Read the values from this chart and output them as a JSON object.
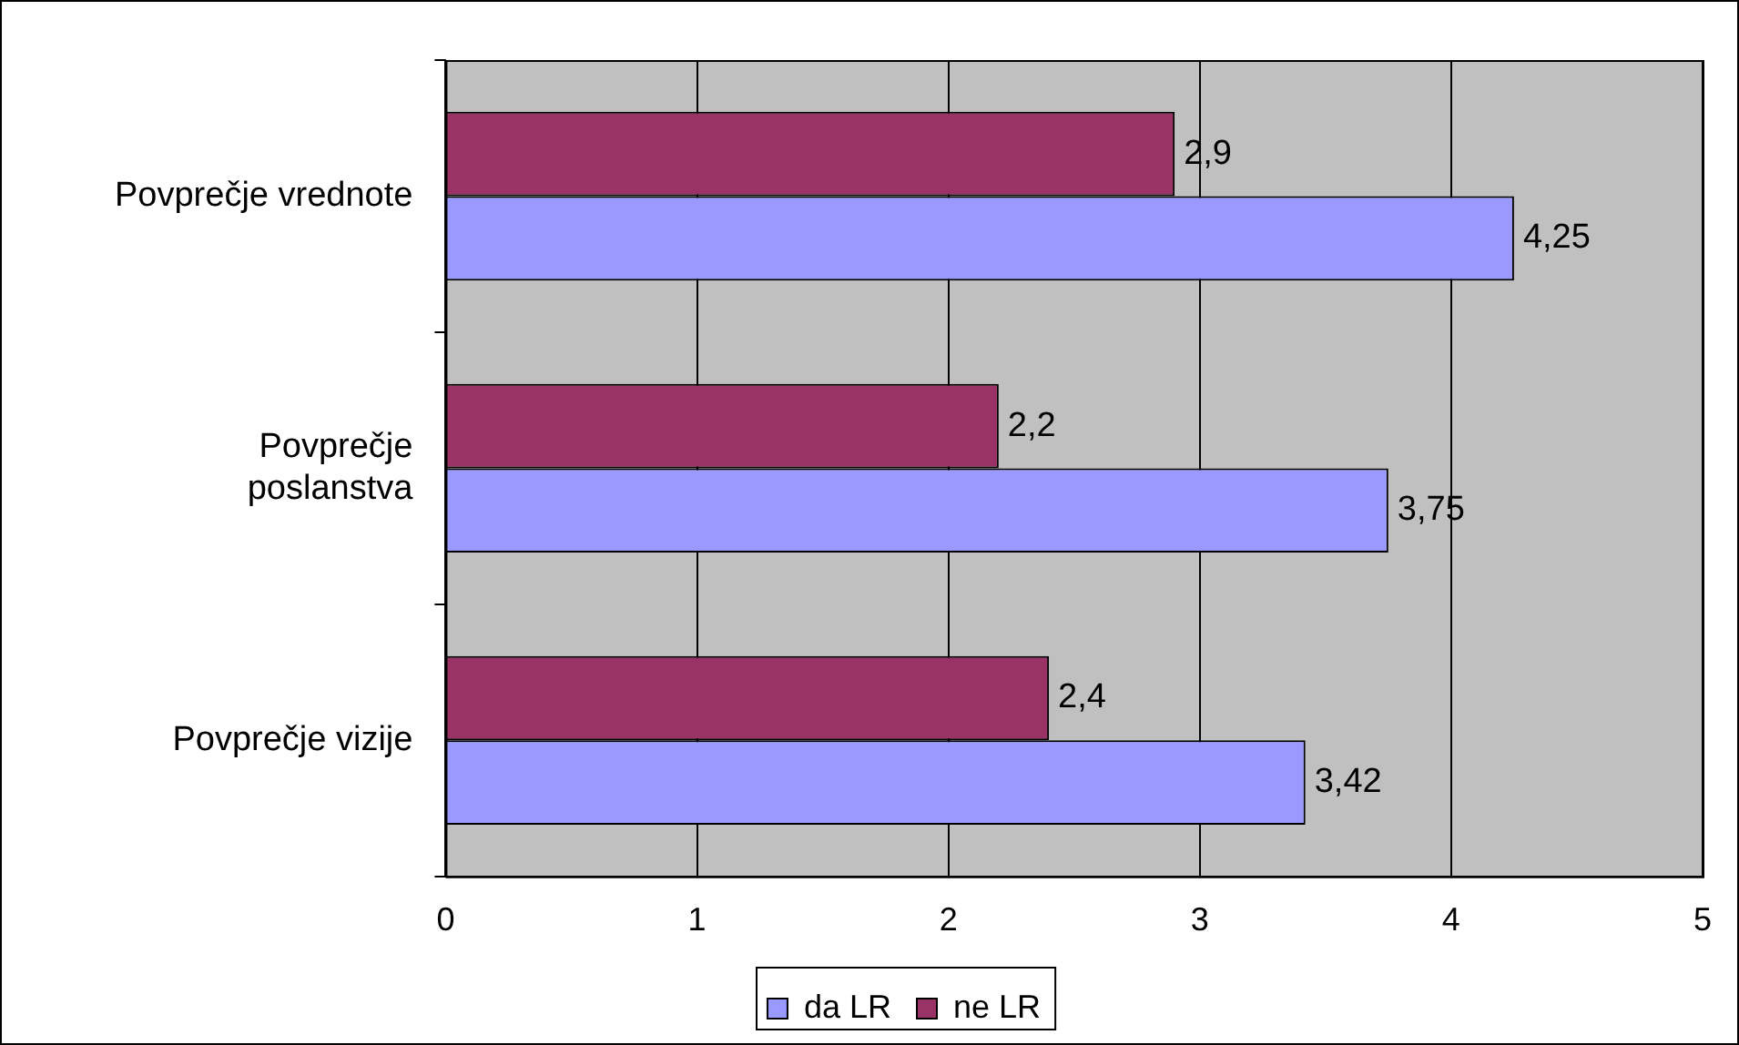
{
  "chart_data": {
    "type": "bar",
    "orientation": "horizontal",
    "categories": [
      "Povprečje vrednote",
      "Povprečje poslanstva",
      "Povprečje vizije"
    ],
    "series": [
      {
        "name": "da LR",
        "color": "#9999ff",
        "values": [
          4.25,
          3.75,
          3.42
        ],
        "value_labels": [
          "4,25",
          "3,75",
          "3,42"
        ]
      },
      {
        "name": "ne LR",
        "color": "#993366",
        "values": [
          2.9,
          2.2,
          2.4
        ],
        "value_labels": [
          "2,9",
          "2,2",
          "2,4"
        ]
      }
    ],
    "xlim": [
      0,
      5
    ],
    "xticks": [
      0,
      1,
      2,
      3,
      4,
      5
    ],
    "grid": "x",
    "legend": "bottom"
  }
}
